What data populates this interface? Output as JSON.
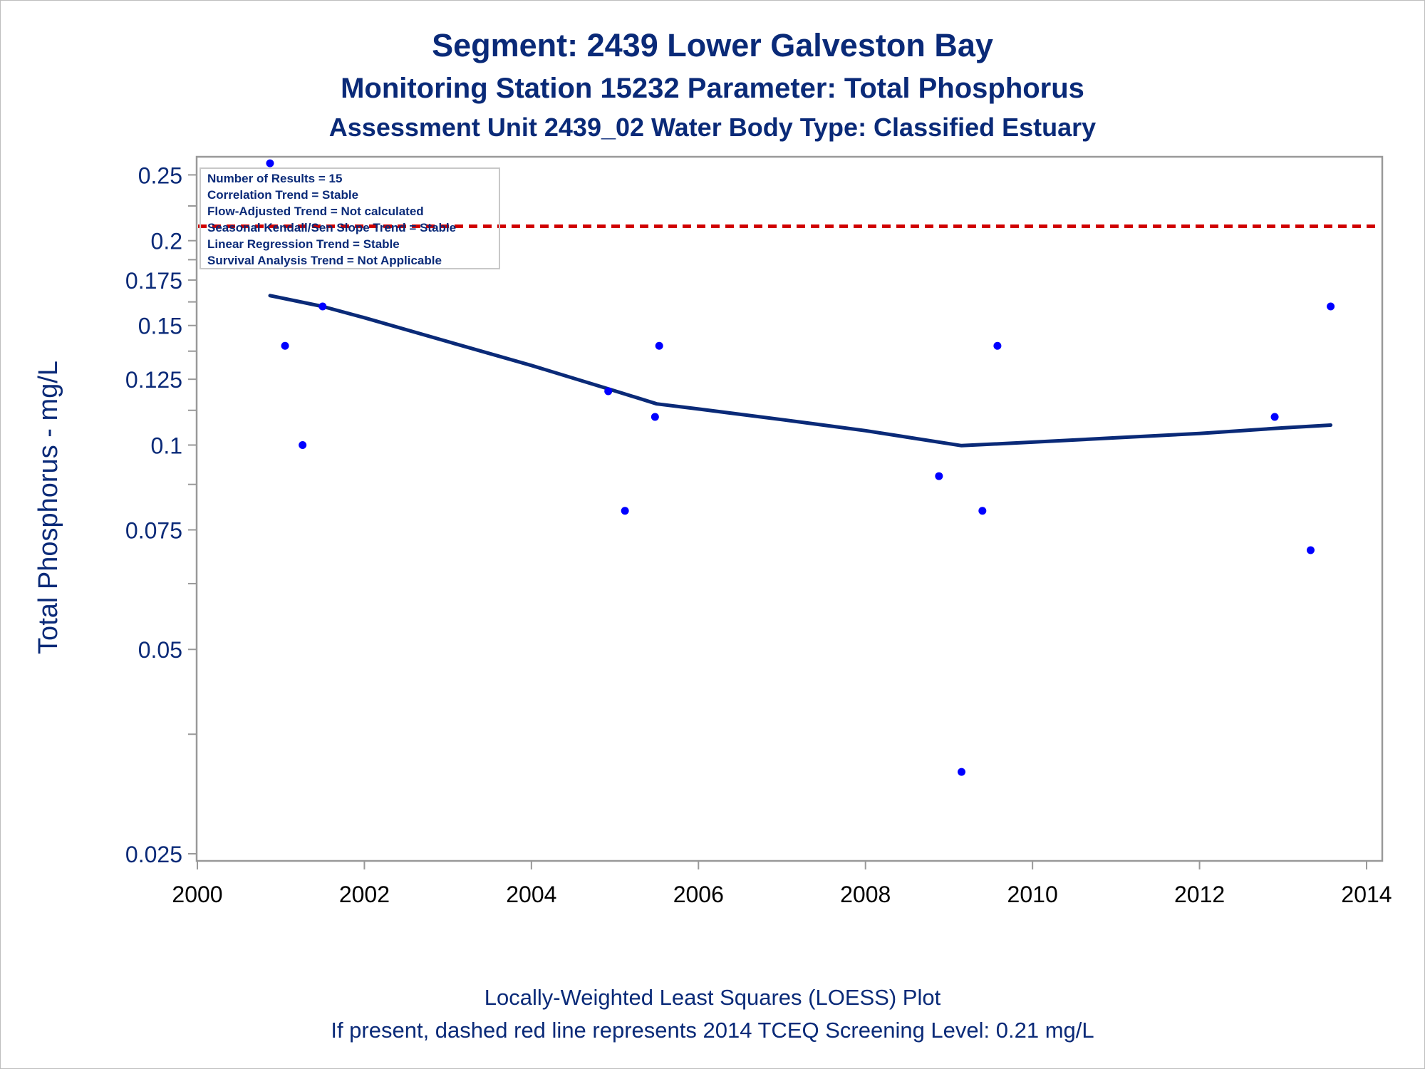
{
  "titles": {
    "line1": "Segment: 2439  Lower Galveston Bay",
    "line2": "Monitoring Station 15232 Parameter: Total Phosphorus",
    "line3": "Assessment Unit 2439_02   Water Body Type: Classified Estuary"
  },
  "footnotes": {
    "line1": "Locally-Weighted Least Squares (LOESS) Plot",
    "line2": "If present, dashed red line represents 2014 TCEQ Screening Level: 0.21 mg/L"
  },
  "stats_box": [
    "Number of Results = 15",
    "Correlation Trend = Stable",
    "Flow-Adjusted Trend = Not calculated",
    "Seasonal Kendall/Sen Slope Trend = Stable",
    "Linear Regression Trend = Stable",
    "Survival Analysis Trend = Not Applicable"
  ],
  "colors": {
    "text": "#0a2a78",
    "points": "#0000ff",
    "loess": "#0a2a78",
    "screening": "#d00000",
    "frame": "#999999"
  },
  "chart_data": {
    "type": "scatter",
    "ylabel": "Total Phosphorus - mg/L",
    "xlabel": "",
    "y_scale": "log",
    "xlim": [
      2000,
      2014
    ],
    "ylim": [
      0.025,
      0.262
    ],
    "x_ticks": [
      "2000",
      "2002",
      "2004",
      "2006",
      "2008",
      "2010",
      "2012",
      "2014"
    ],
    "y_ticks": [
      "0.025",
      "0.05",
      "0.075",
      "0.1",
      "0.125",
      "0.15",
      "0.175",
      "0.2",
      "0.25"
    ],
    "grid": false,
    "screening_level": 0.21,
    "points": [
      {
        "x": 2000.87,
        "y": 0.26
      },
      {
        "x": 2001.05,
        "y": 0.14
      },
      {
        "x": 2001.26,
        "y": 0.1
      },
      {
        "x": 2001.5,
        "y": 0.16
      },
      {
        "x": 2004.92,
        "y": 0.12
      },
      {
        "x": 2005.12,
        "y": 0.08
      },
      {
        "x": 2005.48,
        "y": 0.11
      },
      {
        "x": 2005.53,
        "y": 0.14
      },
      {
        "x": 2008.88,
        "y": 0.09
      },
      {
        "x": 2009.15,
        "y": 0.033
      },
      {
        "x": 2009.4,
        "y": 0.08
      },
      {
        "x": 2009.58,
        "y": 0.14
      },
      {
        "x": 2012.9,
        "y": 0.11
      },
      {
        "x": 2013.33,
        "y": 0.07
      },
      {
        "x": 2013.57,
        "y": 0.16
      }
    ],
    "loess": [
      {
        "x": 2000.87,
        "y": 0.166
      },
      {
        "x": 2001.5,
        "y": 0.16
      },
      {
        "x": 2002.0,
        "y": 0.154
      },
      {
        "x": 2003.0,
        "y": 0.142
      },
      {
        "x": 2004.0,
        "y": 0.131
      },
      {
        "x": 2004.92,
        "y": 0.121
      },
      {
        "x": 2005.5,
        "y": 0.115
      },
      {
        "x": 2006.0,
        "y": 0.113
      },
      {
        "x": 2007.0,
        "y": 0.109
      },
      {
        "x": 2008.0,
        "y": 0.105
      },
      {
        "x": 2009.15,
        "y": 0.0998
      },
      {
        "x": 2010.0,
        "y": 0.101
      },
      {
        "x": 2011.0,
        "y": 0.1025
      },
      {
        "x": 2012.0,
        "y": 0.104
      },
      {
        "x": 2013.0,
        "y": 0.106
      },
      {
        "x": 2013.57,
        "y": 0.107
      }
    ]
  }
}
